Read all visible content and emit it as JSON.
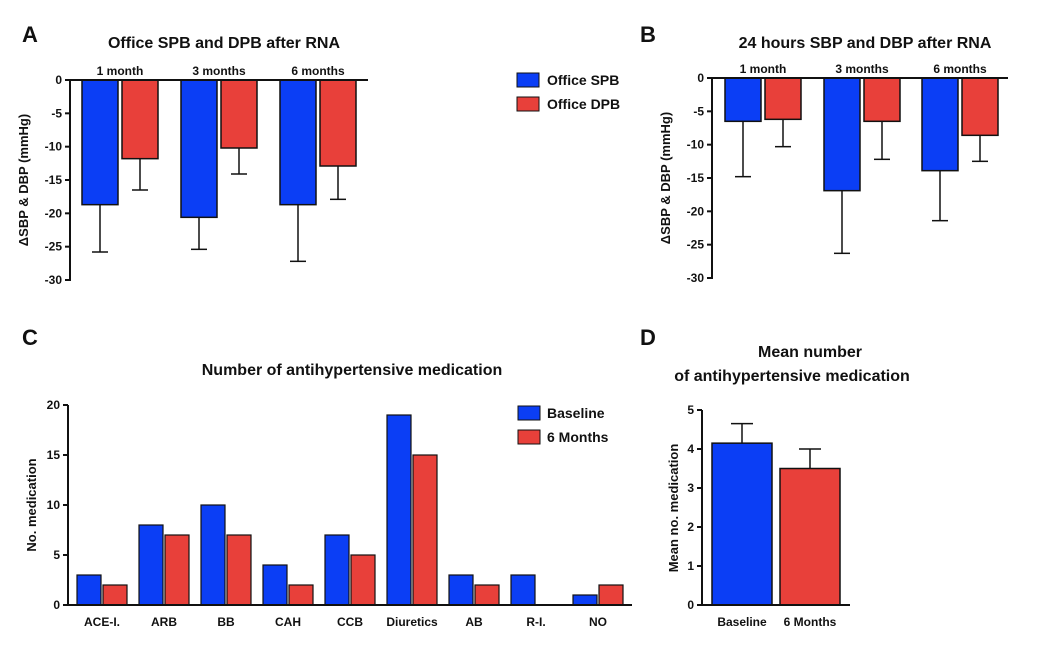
{
  "colors": {
    "blue": "#0b3ef5",
    "red": "#e8403a",
    "axis": "#111111"
  },
  "chart_data": [
    {
      "panel": "A",
      "type": "bar",
      "title": "Office SPB and DPB after RNA",
      "ylabel": "ΔSBP & DBP (mmHg)",
      "categories": [
        "1 month",
        "3 months",
        "6 months"
      ],
      "ylim": [
        -30,
        0
      ],
      "yticks": [
        0,
        -5,
        -10,
        -15,
        -20,
        -25,
        -30
      ],
      "legend_position": "right",
      "series": [
        {
          "name": "Office SPB",
          "color": "#0b3ef5",
          "values": [
            -18.7,
            -20.6,
            -18.7
          ],
          "error_to": [
            -25.8,
            -25.4,
            -27.2
          ]
        },
        {
          "name": "Office DPB",
          "color": "#e8403a",
          "values": [
            -11.8,
            -10.2,
            -12.9
          ],
          "error_to": [
            -16.5,
            -14.1,
            -17.9
          ]
        }
      ]
    },
    {
      "panel": "B",
      "type": "bar",
      "title": "24 hours SBP and DBP after RNA",
      "ylabel": "ΔSBP & DBP (mmHg)",
      "categories": [
        "1 month",
        "3 months",
        "6 months"
      ],
      "ylim": [
        -30,
        0
      ],
      "yticks": [
        0,
        -5,
        -10,
        -15,
        -20,
        -25,
        -30
      ],
      "series": [
        {
          "color": "#0b3ef5",
          "values": [
            -6.5,
            -16.9,
            -13.9
          ],
          "error_to": [
            -14.8,
            -26.3,
            -21.4
          ]
        },
        {
          "color": "#e8403a",
          "values": [
            -6.2,
            -6.5,
            -8.6
          ],
          "error_to": [
            -10.3,
            -12.2,
            -12.5
          ]
        }
      ]
    },
    {
      "panel": "C",
      "type": "bar",
      "title": "Number of antihypertensive medication",
      "ylabel": "No. medication",
      "categories": [
        "ACE-I.",
        "ARB",
        "BB",
        "CAH",
        "CCB",
        "Diuretics",
        "AB",
        "R-I.",
        "NO"
      ],
      "ylim": [
        0,
        20
      ],
      "yticks": [
        0,
        5,
        10,
        15,
        20
      ],
      "legend_position": "top-right",
      "series": [
        {
          "name": "Baseline",
          "color": "#0b3ef5",
          "values": [
            3,
            8,
            10,
            4,
            7,
            19,
            3,
            3,
            1
          ]
        },
        {
          "name": "6 Months",
          "color": "#e8403a",
          "values": [
            2,
            7,
            7,
            2,
            5,
            15,
            2,
            0,
            2
          ]
        }
      ]
    },
    {
      "panel": "D",
      "type": "bar",
      "title": [
        "Mean number",
        "of antihypertensive medication"
      ],
      "ylabel": "Mean no. medication",
      "categories": [
        "Baseline",
        "6 Months"
      ],
      "ylim": [
        0,
        5
      ],
      "yticks": [
        0,
        1,
        2,
        3,
        4,
        5
      ],
      "values": [
        4.15,
        3.5
      ],
      "error_to": [
        4.65,
        4.0
      ],
      "colors": [
        "#0b3ef5",
        "#e8403a"
      ]
    }
  ]
}
